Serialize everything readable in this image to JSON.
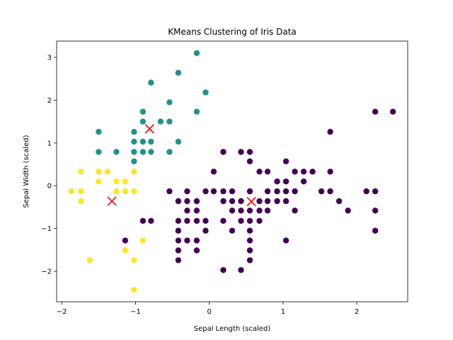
{
  "chart_data": {
    "type": "scatter",
    "title": "KMeans Clustering of Iris Data",
    "xlabel": "Sepal Length (scaled)",
    "ylabel": "Sepal Width (scaled)",
    "xlim": [
      -2.07,
      2.69
    ],
    "ylim": [
      -2.71,
      3.38
    ],
    "xticks": [
      -2,
      -1,
      0,
      1,
      2
    ],
    "yticks": [
      -2,
      -1,
      0,
      1,
      2,
      3
    ],
    "grid": false,
    "colors": {
      "cluster_0": "#440154",
      "cluster_1": "#21918c",
      "cluster_2": "#fde725",
      "centroid": "#ff0000"
    },
    "series": [
      {
        "cluster": 0,
        "points": [
          [
            2.25,
            1.73
          ],
          [
            2.49,
            1.73
          ],
          [
            1.64,
            1.26
          ],
          [
            0.19,
            0.79
          ],
          [
            0.43,
            0.79
          ],
          [
            0.55,
            0.79
          ],
          [
            0.55,
            0.57
          ],
          [
            1.04,
            0.57
          ],
          [
            0.06,
            0.33
          ],
          [
            0.68,
            0.33
          ],
          [
            0.79,
            0.33
          ],
          [
            1.16,
            0.33
          ],
          [
            1.28,
            0.33
          ],
          [
            1.4,
            0.33
          ],
          [
            1.64,
            0.33
          ],
          [
            0.92,
            0.1
          ],
          [
            1.04,
            0.1
          ],
          [
            1.28,
            0.1
          ],
          [
            -0.54,
            -0.13
          ],
          [
            -0.3,
            -0.13
          ],
          [
            -0.05,
            -0.13
          ],
          [
            0.06,
            -0.13
          ],
          [
            0.19,
            -0.13
          ],
          [
            0.31,
            -0.13
          ],
          [
            0.55,
            -0.13
          ],
          [
            0.79,
            -0.13
          ],
          [
            0.92,
            -0.13
          ],
          [
            1.04,
            -0.13
          ],
          [
            1.16,
            -0.13
          ],
          [
            1.52,
            -0.13
          ],
          [
            1.64,
            -0.13
          ],
          [
            2.13,
            -0.13
          ],
          [
            2.25,
            -0.13
          ],
          [
            -0.42,
            -0.36
          ],
          [
            -0.3,
            -0.36
          ],
          [
            -0.17,
            -0.36
          ],
          [
            0.19,
            -0.36
          ],
          [
            0.31,
            -0.36
          ],
          [
            0.43,
            -0.36
          ],
          [
            0.68,
            -0.36
          ],
          [
            0.79,
            -0.36
          ],
          [
            0.92,
            -0.36
          ],
          [
            1.04,
            -0.36
          ],
          [
            1.76,
            -0.36
          ],
          [
            -0.3,
            -0.58
          ],
          [
            -0.17,
            -0.58
          ],
          [
            0.31,
            -0.58
          ],
          [
            0.43,
            -0.58
          ],
          [
            0.55,
            -0.58
          ],
          [
            0.68,
            -0.58
          ],
          [
            0.79,
            -0.58
          ],
          [
            1.16,
            -0.58
          ],
          [
            1.88,
            -0.58
          ],
          [
            2.25,
            -0.58
          ],
          [
            -0.9,
            -0.82
          ],
          [
            -0.79,
            -0.82
          ],
          [
            -0.42,
            -0.82
          ],
          [
            -0.3,
            -0.82
          ],
          [
            -0.17,
            -0.82
          ],
          [
            -0.05,
            -0.82
          ],
          [
            0.19,
            -0.82
          ],
          [
            0.43,
            -0.82
          ],
          [
            0.55,
            -0.82
          ],
          [
            0.68,
            -0.82
          ],
          [
            -0.42,
            -1.05
          ],
          [
            -0.05,
            -1.05
          ],
          [
            0.31,
            -1.05
          ],
          [
            0.55,
            -1.05
          ],
          [
            2.25,
            -1.05
          ],
          [
            -1.14,
            -1.28
          ],
          [
            -0.42,
            -1.28
          ],
          [
            -0.3,
            -1.28
          ],
          [
            -0.17,
            -1.28
          ],
          [
            0.55,
            -1.28
          ],
          [
            1.04,
            -1.28
          ],
          [
            -0.42,
            -1.51
          ],
          [
            -0.17,
            -1.51
          ],
          [
            0.55,
            -1.51
          ],
          [
            -0.42,
            -1.74
          ],
          [
            0.55,
            -1.74
          ],
          [
            0.19,
            -1.97
          ],
          [
            0.43,
            -1.97
          ]
        ]
      },
      {
        "cluster": 1,
        "points": [
          [
            -0.17,
            3.1
          ],
          [
            -0.42,
            2.64
          ],
          [
            -0.79,
            2.41
          ],
          [
            -0.05,
            2.18
          ],
          [
            -0.54,
            1.95
          ],
          [
            -0.9,
            1.73
          ],
          [
            -0.17,
            1.73
          ],
          [
            -0.9,
            1.5
          ],
          [
            -0.66,
            1.5
          ],
          [
            -0.54,
            1.5
          ],
          [
            -1.5,
            1.26
          ],
          [
            -1.02,
            1.26
          ],
          [
            -1.02,
            1.03
          ],
          [
            -0.9,
            1.03
          ],
          [
            -0.79,
            1.03
          ],
          [
            -0.42,
            1.03
          ],
          [
            -1.5,
            0.79
          ],
          [
            -1.26,
            0.79
          ],
          [
            -1.02,
            0.79
          ],
          [
            -0.9,
            0.79
          ],
          [
            -0.79,
            0.79
          ],
          [
            -0.54,
            0.79
          ],
          [
            -1.02,
            0.57
          ]
        ]
      },
      {
        "cluster": 2,
        "points": [
          [
            -1.74,
            0.33
          ],
          [
            -1.5,
            0.33
          ],
          [
            -1.38,
            0.33
          ],
          [
            -1.02,
            0.33
          ],
          [
            -1.5,
            0.1
          ],
          [
            -1.26,
            0.1
          ],
          [
            -1.14,
            0.1
          ],
          [
            -1.87,
            -0.13
          ],
          [
            -1.74,
            -0.13
          ],
          [
            -1.26,
            -0.13
          ],
          [
            -1.14,
            -0.13
          ],
          [
            -1.02,
            -0.13
          ],
          [
            -1.74,
            -0.36
          ],
          [
            -0.9,
            -1.28
          ],
          [
            -1.14,
            -1.51
          ],
          [
            -1.62,
            -1.74
          ],
          [
            -1.02,
            -1.74
          ],
          [
            -1.02,
            -2.43
          ]
        ]
      }
    ],
    "centroids": [
      [
        0.57,
        -0.37
      ],
      [
        -0.81,
        1.33
      ],
      [
        -1.32,
        -0.36
      ]
    ]
  }
}
